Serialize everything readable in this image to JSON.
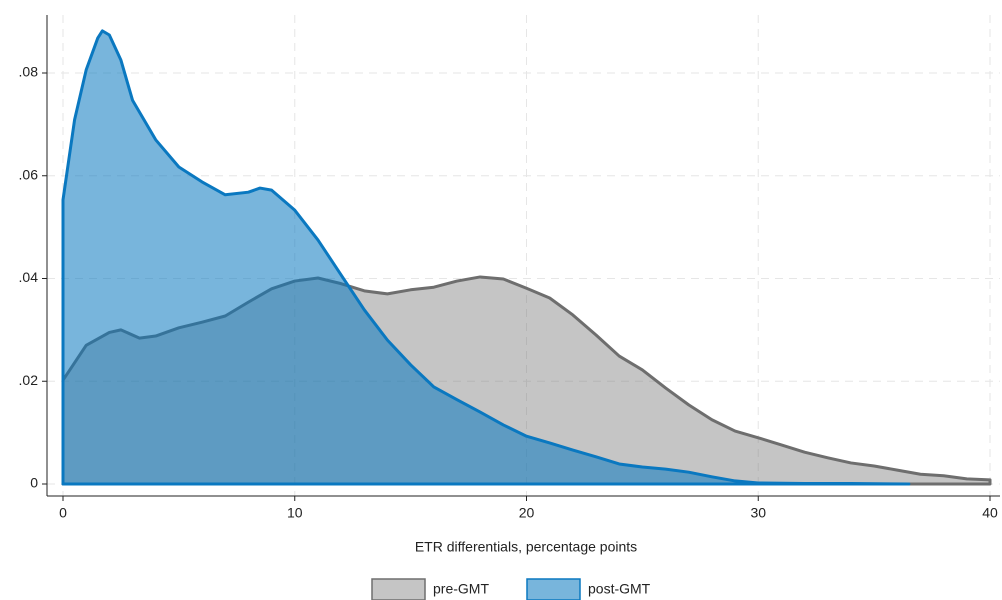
{
  "chart_data": {
    "type": "area",
    "x_label": "ETR differentials, percentage points",
    "xlim": [
      0,
      40
    ],
    "xticks": [
      0,
      10,
      20,
      30,
      40
    ],
    "ylim": [
      0,
      0.0905
    ],
    "yticks": [
      0,
      {
        "value": 0.02,
        "label": ".02"
      },
      {
        "value": 0.04,
        "label": ".04"
      },
      {
        "value": 0.06,
        "label": ".06"
      },
      {
        "value": 0.08,
        "label": ".08"
      }
    ],
    "grid": true,
    "legend": "bottom",
    "series": [
      {
        "name": "pre-GMT",
        "color": "#6e6e6e",
        "x": [
          0,
          1,
          2,
          2.5,
          3.3,
          4,
          5,
          6,
          7,
          8,
          9,
          10,
          11,
          12,
          13,
          14,
          15,
          16,
          17,
          18,
          19,
          20,
          21,
          22,
          23,
          24,
          25,
          26,
          27,
          28,
          29,
          30,
          31,
          32,
          33,
          34,
          35,
          36,
          37,
          38,
          39,
          40
        ],
        "values": [
          0.0202,
          0.027,
          0.0295,
          0.03,
          0.0284,
          0.0288,
          0.0304,
          0.0315,
          0.0327,
          0.0354,
          0.038,
          0.0395,
          0.0401,
          0.039,
          0.0376,
          0.037,
          0.0378,
          0.0383,
          0.0395,
          0.0403,
          0.0399,
          0.0381,
          0.0362,
          0.0329,
          0.029,
          0.0249,
          0.0222,
          0.0187,
          0.0154,
          0.0125,
          0.0103,
          0.009,
          0.0076,
          0.0062,
          0.0051,
          0.0041,
          0.0035,
          0.0027,
          0.0019,
          0.0016,
          0.001,
          0.0008
        ]
      },
      {
        "name": "post-GMT",
        "color": "#0a78c0",
        "x": [
          0,
          0.5,
          1,
          1.5,
          1.7,
          2,
          2.5,
          3,
          4,
          5,
          6,
          7,
          8,
          8.5,
          9,
          10,
          11,
          12,
          13,
          14,
          15,
          16,
          17,
          18,
          19,
          20,
          21,
          22,
          23,
          24,
          25,
          26,
          27,
          28,
          29,
          30,
          32,
          34,
          36.5
        ],
        "values": [
          0.0553,
          0.0709,
          0.0806,
          0.0868,
          0.0882,
          0.0874,
          0.0825,
          0.0747,
          0.067,
          0.0617,
          0.0588,
          0.0563,
          0.0568,
          0.0576,
          0.0572,
          0.0533,
          0.0475,
          0.0407,
          0.0339,
          0.028,
          0.0232,
          0.0189,
          0.0164,
          0.014,
          0.0115,
          0.0093,
          0.008,
          0.0066,
          0.0053,
          0.0039,
          0.0033,
          0.0029,
          0.0023,
          0.0014,
          0.0006,
          0.0002,
          0.0001,
          0.0001,
          0
        ]
      }
    ]
  }
}
